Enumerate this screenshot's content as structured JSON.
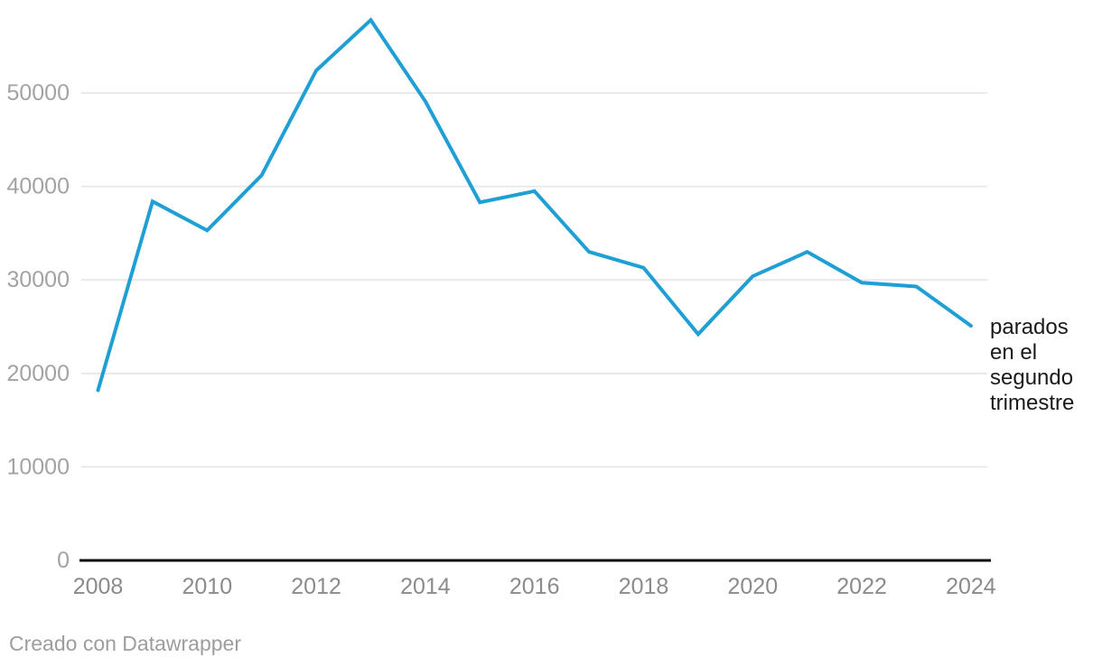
{
  "chart_data": {
    "type": "line",
    "title": "",
    "xlabel": "",
    "ylabel": "",
    "x": [
      2008,
      2009,
      2010,
      2011,
      2012,
      2013,
      2014,
      2015,
      2016,
      2017,
      2018,
      2019,
      2020,
      2021,
      2022,
      2023,
      2024
    ],
    "values": [
      18200,
      38400,
      35300,
      41200,
      52400,
      57800,
      49100,
      38300,
      39500,
      33000,
      31300,
      24200,
      30400,
      33000,
      29700,
      29300,
      25100
    ],
    "series_label": "parados\nen el\nsegundo\ntrimestre",
    "xticks": [
      2008,
      2010,
      2012,
      2014,
      2016,
      2018,
      2020,
      2022,
      2024
    ],
    "yticks": [
      0,
      10000,
      20000,
      30000,
      40000,
      50000
    ],
    "xlim": [
      2008,
      2024
    ],
    "ylim": [
      0,
      58000
    ],
    "grid": true,
    "legend": "none",
    "line_color": "#1f9fd4"
  },
  "colors": {
    "line": "#1f9fd4",
    "grid": "#e7e7e7",
    "axis": "#0d0d0d",
    "y_tick_label": "#a3a3a3",
    "x_tick_label": "#8b8b8b",
    "annotation": "#1a1a1a",
    "footer": "#9d9d9d",
    "background": "#ffffff"
  },
  "footer": {
    "credit": "Creado con Datawrapper"
  }
}
